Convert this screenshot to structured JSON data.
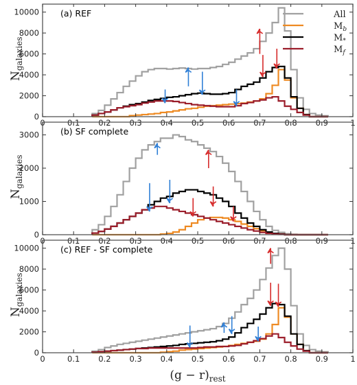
{
  "chart_data": {
    "type": "histogram",
    "xlabel": "(g − r)",
    "xlabel_sub": "rest",
    "ylabel": "N",
    "ylabel_sub": "galaxies",
    "x_ticks": [
      "0",
      "0.1",
      "0.2",
      "0.3",
      "0.4",
      "0.5",
      "0.6",
      "0.7",
      "0.8",
      "0.9",
      "1"
    ],
    "xlim": [
      0,
      1
    ],
    "bin_edges": [
      0.16,
      0.18,
      0.2,
      0.22,
      0.24,
      0.26,
      0.28,
      0.3,
      0.32,
      0.34,
      0.36,
      0.38,
      0.4,
      0.42,
      0.44,
      0.46,
      0.48,
      0.5,
      0.52,
      0.54,
      0.56,
      0.58,
      0.6,
      0.62,
      0.64,
      0.66,
      0.68,
      0.7,
      0.72,
      0.74,
      0.76,
      0.78,
      0.8,
      0.82,
      0.84,
      0.86,
      0.88,
      0.9,
      0.92
    ],
    "series_styles": [
      {
        "key": "all",
        "name": "All",
        "color": "#a0a0a0"
      },
      {
        "key": "mb",
        "name": "M",
        "sub": "b",
        "color": "#ee8a22"
      },
      {
        "key": "ms",
        "name": "M",
        "sub": "*",
        "color": "#000000"
      },
      {
        "key": "mf",
        "name": "M",
        "sub": "f",
        "color": "#9b1d2a"
      }
    ],
    "panels": [
      {
        "label": "(a) REF",
        "ylim": [
          0,
          10500
        ],
        "y_ticks": [
          0,
          2000,
          4000,
          6000,
          8000,
          10000
        ],
        "series": {
          "all": [
            300,
            600,
            1100,
            1700,
            2300,
            2900,
            3400,
            3900,
            4300,
            4500,
            4600,
            4600,
            4550,
            4600,
            4650,
            4600,
            4550,
            4600,
            4600,
            4700,
            4800,
            5000,
            5200,
            5500,
            5800,
            6100,
            6500,
            7200,
            8000,
            9000,
            10400,
            8200,
            4500,
            1800,
            700,
            300,
            150,
            80
          ],
          "mb": [
            0,
            0,
            0,
            0,
            0,
            0,
            100,
            150,
            200,
            250,
            300,
            400,
            450,
            550,
            650,
            750,
            800,
            900,
            1000,
            1050,
            1100,
            1150,
            1200,
            1250,
            1300,
            1400,
            1500,
            1700,
            2200,
            3000,
            4500,
            3500,
            1800,
            800,
            200,
            0,
            0,
            0
          ],
          "ms": [
            150,
            300,
            450,
            650,
            850,
            1000,
            1150,
            1250,
            1400,
            1550,
            1650,
            1750,
            1850,
            1900,
            2000,
            2100,
            2200,
            2250,
            2200,
            2150,
            2150,
            2200,
            2300,
            2600,
            2900,
            3100,
            3300,
            3700,
            4300,
            4700,
            4800,
            3700,
            1900,
            800,
            200,
            0,
            0,
            0
          ],
          "mf": [
            150,
            300,
            450,
            650,
            850,
            950,
            1050,
            1150,
            1300,
            1400,
            1500,
            1500,
            1500,
            1450,
            1350,
            1250,
            1150,
            1100,
            1050,
            1000,
            950,
            950,
            950,
            1050,
            1250,
            1350,
            1500,
            1600,
            1800,
            1900,
            1500,
            1000,
            700,
            400,
            150,
            0,
            0,
            0
          ]
        },
        "arrows": [
          {
            "x": 0.395,
            "y_from": 2600,
            "y_to": 1300,
            "color": "#2f7fd6"
          },
          {
            "x": 0.47,
            "y_from": 2900,
            "y_to": 4700,
            "color": "#2f7fd6"
          },
          {
            "x": 0.515,
            "y_from": 4300,
            "y_to": 2100,
            "color": "#2f7fd6"
          },
          {
            "x": 0.625,
            "y_from": 2600,
            "y_to": 1000,
            "color": "#2f7fd6"
          },
          {
            "x": 0.7,
            "y_from": 6000,
            "y_to": 8400,
            "color": "#d62a2a"
          },
          {
            "x": 0.71,
            "y_from": 5900,
            "y_to": 3800,
            "color": "#d62a2a"
          },
          {
            "x": 0.755,
            "y_from": 6500,
            "y_to": 4600,
            "color": "#d62a2a"
          }
        ]
      },
      {
        "label": "(b) SF complete",
        "ylim": [
          0,
          3300
        ],
        "y_ticks": [
          0,
          1000,
          2000,
          3000
        ],
        "series": {
          "all": [
            150,
            300,
            550,
            850,
            1200,
            1600,
            2000,
            2300,
            2550,
            2700,
            2800,
            2900,
            2900,
            3000,
            2950,
            2850,
            2800,
            2700,
            2600,
            2500,
            2350,
            2150,
            1900,
            1600,
            1300,
            1000,
            700,
            450,
            250,
            130,
            70,
            30,
            10,
            0,
            0,
            0,
            0,
            0
          ],
          "mb": [
            0,
            0,
            0,
            0,
            0,
            0,
            0,
            0,
            0,
            0,
            0,
            20,
            40,
            80,
            150,
            250,
            350,
            450,
            500,
            520,
            520,
            500,
            450,
            400,
            320,
            250,
            180,
            120,
            70,
            40,
            20,
            0,
            0,
            0,
            0,
            0,
            0,
            0
          ],
          "ms": [
            50,
            100,
            170,
            250,
            350,
            450,
            550,
            650,
            750,
            900,
            1000,
            1100,
            1150,
            1250,
            1300,
            1350,
            1350,
            1300,
            1250,
            1200,
            1100,
            1000,
            850,
            650,
            500,
            350,
            250,
            150,
            80,
            40,
            20,
            0,
            0,
            0,
            0,
            0,
            0,
            0
          ],
          "mf": [
            50,
            100,
            170,
            250,
            350,
            450,
            550,
            650,
            750,
            800,
            850,
            850,
            800,
            750,
            700,
            650,
            600,
            550,
            500,
            450,
            400,
            350,
            300,
            250,
            200,
            150,
            110,
            70,
            40,
            20,
            10,
            0,
            0,
            0,
            0,
            0,
            0,
            0
          ]
        },
        "arrows": [
          {
            "x": 0.37,
            "y_from": 2400,
            "y_to": 2750,
            "color": "#2f7fd6"
          },
          {
            "x": 0.345,
            "y_from": 1550,
            "y_to": 700,
            "color": "#2f7fd6"
          },
          {
            "x": 0.41,
            "y_from": 1650,
            "y_to": 950,
            "color": "#2f7fd6"
          },
          {
            "x": 0.535,
            "y_from": 2000,
            "y_to": 2550,
            "color": "#d62a2a"
          },
          {
            "x": 0.485,
            "y_from": 1100,
            "y_to": 550,
            "color": "#d62a2a"
          },
          {
            "x": 0.55,
            "y_from": 1450,
            "y_to": 850,
            "color": "#d62a2a"
          },
          {
            "x": 0.615,
            "y_from": 850,
            "y_to": 400,
            "color": "#d62a2a"
          }
        ]
      },
      {
        "label": "(c) REF - SF complete",
        "ylim": [
          0,
          10500
        ],
        "y_ticks": [
          0,
          2000,
          4000,
          6000,
          8000,
          10000
        ],
        "series": {
          "all": [
            150,
            300,
            500,
            650,
            800,
            900,
            1000,
            1100,
            1200,
            1300,
            1400,
            1500,
            1600,
            1700,
            1800,
            1900,
            2000,
            2100,
            2200,
            2300,
            2500,
            2800,
            3300,
            3900,
            4600,
            5200,
            6000,
            7000,
            8100,
            9300,
            10000,
            8000,
            4500,
            1800,
            700,
            300,
            150,
            80
          ],
          "mb": [
            0,
            0,
            0,
            0,
            0,
            0,
            0,
            0,
            0,
            0,
            0,
            50,
            100,
            150,
            250,
            300,
            350,
            400,
            450,
            500,
            550,
            600,
            700,
            800,
            900,
            1000,
            1100,
            1300,
            1800,
            2700,
            4300,
            3400,
            1800,
            800,
            200,
            0,
            0,
            0
          ],
          "ms": [
            50,
            100,
            150,
            200,
            250,
            300,
            350,
            400,
            450,
            500,
            550,
            600,
            650,
            700,
            800,
            850,
            900,
            950,
            1000,
            1050,
            1150,
            1300,
            1500,
            1900,
            2400,
            2800,
            3200,
            3700,
            4300,
            4700,
            4600,
            3500,
            1800,
            800,
            200,
            0,
            0,
            0
          ],
          "mf": [
            50,
            100,
            150,
            200,
            250,
            300,
            350,
            400,
            400,
            450,
            450,
            450,
            450,
            450,
            450,
            450,
            450,
            500,
            550,
            550,
            600,
            600,
            650,
            700,
            850,
            1000,
            1150,
            1350,
            1600,
            1800,
            1450,
            1000,
            650,
            350,
            150,
            0,
            0,
            0
          ]
        },
        "arrows": [
          {
            "x": 0.475,
            "y_from": 2600,
            "y_to": 500,
            "color": "#2f7fd6"
          },
          {
            "x": 0.585,
            "y_from": 1900,
            "y_to": 2900,
            "color": "#2f7fd6"
          },
          {
            "x": 0.61,
            "y_from": 3500,
            "y_to": 1800,
            "color": "#2f7fd6"
          },
          {
            "x": 0.695,
            "y_from": 2500,
            "y_to": 1100,
            "color": "#2f7fd6"
          },
          {
            "x": 0.735,
            "y_from": 8500,
            "y_to": 10000,
            "color": "#d62a2a"
          },
          {
            "x": 0.735,
            "y_from": 6700,
            "y_to": 4500,
            "color": "#d62a2a"
          },
          {
            "x": 0.76,
            "y_from": 6600,
            "y_to": 4400,
            "color": "#d62a2a"
          }
        ]
      }
    ]
  }
}
